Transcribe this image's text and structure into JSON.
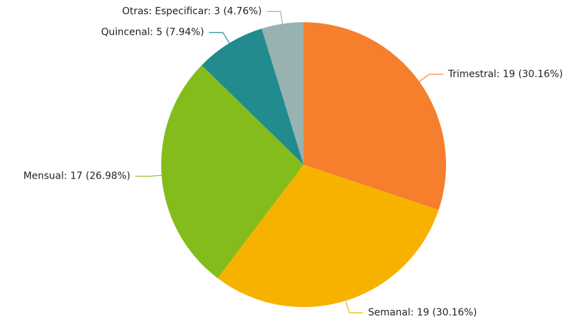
{
  "chart_data": {
    "type": "pie",
    "values": [
      19,
      19,
      17,
      5,
      3
    ],
    "value_labels": [
      "Trimestral: 19 (30.16%)",
      "Semanal: 19 (30.16%)",
      "Mensual: 17 (26.98%)",
      "Quincenal: 5 (7.94%)",
      "Otras: Especificar: 3 (4.76%)"
    ],
    "colors": [
      "#f57f2d",
      "#f7b200",
      "#84bc1c",
      "#218b8e",
      "#98b1b1"
    ]
  }
}
